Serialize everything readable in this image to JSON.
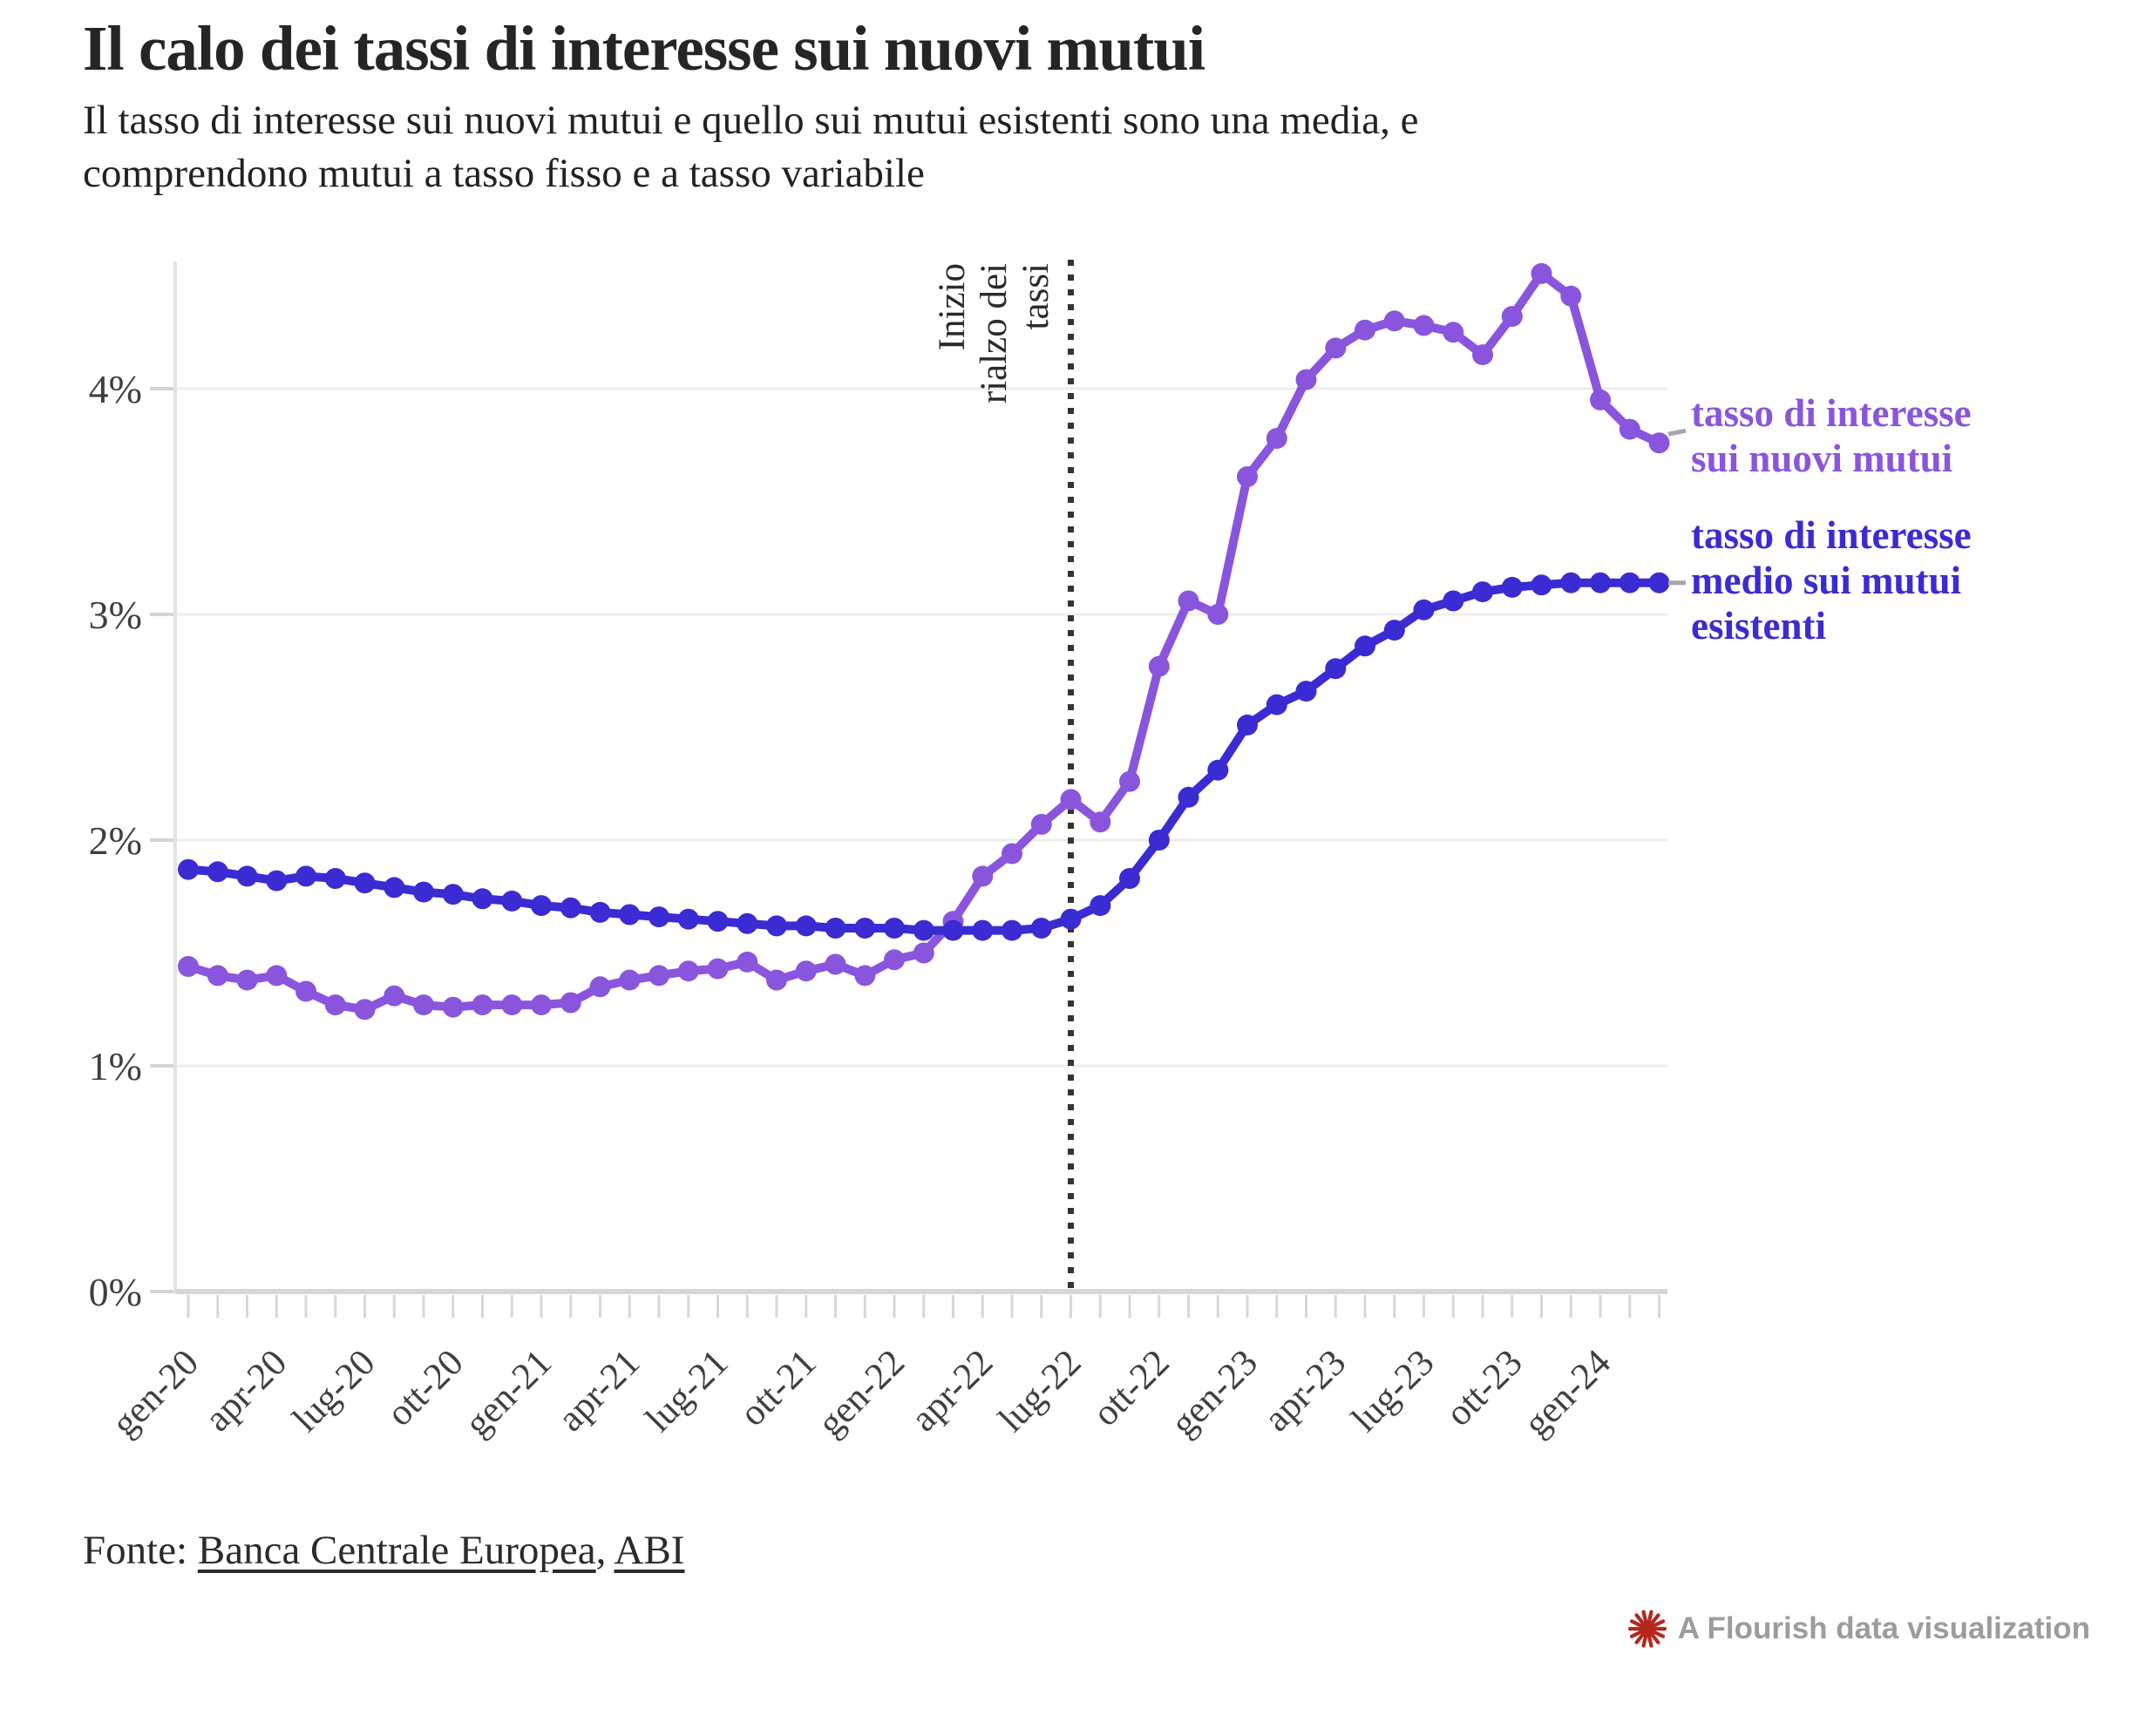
{
  "header": {
    "title": "Il calo dei tassi di interesse sui nuovi mutui",
    "subtitle_line1": "Il tasso di interesse sui nuovi mutui e quello sui mutui esistenti sono una media, e",
    "subtitle_line2": "comprendono mutui a tasso fisso e a tasso variabile"
  },
  "chart_data": {
    "type": "line",
    "title": "Il calo dei tassi di interesse sui nuovi mutui",
    "xlabel": "",
    "ylabel": "",
    "ylim": [
      0,
      4.6
    ],
    "grid": "horizontal",
    "legend_position": "right",
    "y_ticks": [
      {
        "value": 0,
        "label": "0%"
      },
      {
        "value": 1,
        "label": "1%"
      },
      {
        "value": 2,
        "label": "2%"
      },
      {
        "value": 3,
        "label": "3%"
      },
      {
        "value": 4,
        "label": "4%"
      }
    ],
    "x_tick_labels": [
      "gen-20",
      "apr-20",
      "lug-20",
      "ott-20",
      "gen-21",
      "apr-21",
      "lug-21",
      "ott-21",
      "gen-22",
      "apr-22",
      "lug-22",
      "ott-22",
      "gen-23",
      "apr-23",
      "lug-23",
      "ott-23",
      "gen-24"
    ],
    "x_tick_every_months": 3,
    "categories": [
      "gen-20",
      "feb-20",
      "mar-20",
      "apr-20",
      "mag-20",
      "giu-20",
      "lug-20",
      "ago-20",
      "set-20",
      "ott-20",
      "nov-20",
      "dic-20",
      "gen-21",
      "feb-21",
      "mar-21",
      "apr-21",
      "mag-21",
      "giu-21",
      "lug-21",
      "ago-21",
      "set-21",
      "ott-21",
      "nov-21",
      "dic-21",
      "gen-22",
      "feb-22",
      "mar-22",
      "apr-22",
      "mag-22",
      "giu-22",
      "lug-22",
      "ago-22",
      "set-22",
      "ott-22",
      "nov-22",
      "dic-22",
      "gen-23",
      "feb-23",
      "mar-23",
      "apr-23",
      "mag-23",
      "giu-23",
      "lug-23",
      "ago-23",
      "set-23",
      "ott-23",
      "nov-23",
      "dic-23",
      "gen-24",
      "feb-24",
      "mar-24"
    ],
    "series": [
      {
        "name": "tasso di interesse sui nuovi mutui",
        "color": "#8a55dd",
        "values": [
          1.44,
          1.4,
          1.38,
          1.4,
          1.33,
          1.27,
          1.25,
          1.31,
          1.27,
          1.26,
          1.27,
          1.27,
          1.27,
          1.28,
          1.35,
          1.38,
          1.4,
          1.42,
          1.43,
          1.46,
          1.38,
          1.42,
          1.45,
          1.4,
          1.47,
          1.5,
          1.64,
          1.84,
          1.94,
          2.07,
          2.18,
          2.08,
          2.26,
          2.77,
          3.06,
          3.0,
          3.61,
          3.78,
          4.04,
          4.18,
          4.26,
          4.3,
          4.28,
          4.25,
          4.15,
          4.32,
          4.51,
          4.41,
          3.95,
          3.82,
          3.76
        ]
      },
      {
        "name": "tasso di interesse medio sui mutui esistenti",
        "color": "#3a2bd3",
        "values": [
          1.87,
          1.86,
          1.84,
          1.82,
          1.84,
          1.83,
          1.81,
          1.79,
          1.77,
          1.76,
          1.74,
          1.73,
          1.71,
          1.7,
          1.68,
          1.67,
          1.66,
          1.65,
          1.64,
          1.63,
          1.62,
          1.62,
          1.61,
          1.61,
          1.61,
          1.6,
          1.6,
          1.6,
          1.6,
          1.61,
          1.65,
          1.71,
          1.83,
          2.0,
          2.19,
          2.31,
          2.51,
          2.6,
          2.66,
          2.76,
          2.86,
          2.93,
          3.02,
          3.06,
          3.1,
          3.12,
          3.13,
          3.14,
          3.14,
          3.14,
          3.14
        ]
      }
    ],
    "annotation": {
      "text": "Inizio rialzo dei tassi",
      "lines": [
        "Inizio",
        "rialzo dei",
        "tassi"
      ],
      "at_category": "lug-22",
      "month_index": 30,
      "line_style": "dotted"
    }
  },
  "legend": {
    "new_loans_lines": [
      "tasso di interesse",
      "sui nuovi mutui"
    ],
    "existing_lines": [
      "tasso di interesse",
      "medio sui mutui",
      "esistenti"
    ]
  },
  "footer": {
    "fonte_label": "Fonte: ",
    "source1": "Banca Centrale Europea",
    "separator": ", ",
    "source2": "ABI"
  },
  "attribution": {
    "text": "A Flourish data visualization",
    "icon": "flourish-starburst-icon",
    "icon_color": "#b5271d",
    "text_color": "#9c9c9c"
  }
}
